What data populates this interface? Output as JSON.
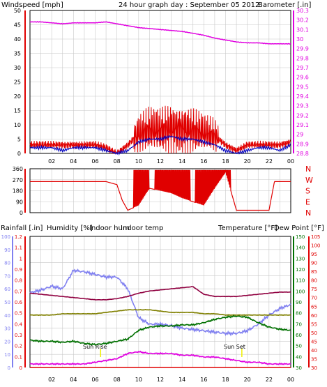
{
  "header": {
    "title": "24 hour graph day : September 05 2012",
    "wind_label": "Windspeed [mph]",
    "baro_label": "Barometer [.in]"
  },
  "x_ticks": [
    "02",
    "04",
    "06",
    "08",
    "10",
    "12",
    "14",
    "16",
    "18",
    "20",
    "22",
    "00"
  ],
  "direction_letters": [
    "N",
    "W",
    "S",
    "E",
    "N"
  ],
  "sunrise_label": "Sun Rise",
  "sunset_label": "Sun Set",
  "bottom_labels": {
    "rainfall": "Rainfall [.in]",
    "humidity": "Humidity [%]",
    "indoor_hum": "Indoor hum",
    "indoor_temp": "Indoor temp",
    "temperature": "Temperature [°F]",
    "dew_point": "Dew Point [°F]"
  },
  "colors": {
    "wind": "#e00000",
    "wind_avg": "#0000c0",
    "baro": "#e000e0",
    "grid": "#c8c8c8",
    "humidity": "#8080f0",
    "indoor_hum": "#808000",
    "indoor_temp": "#900040",
    "temperature": "#007000",
    "dew_point": "#e000e0",
    "rain": "#e00000",
    "sun": "#f0f000"
  },
  "chart_data": [
    {
      "type": "line",
      "name": "wind-baro",
      "x_hours": [
        0,
        1,
        2,
        3,
        4,
        5,
        6,
        7,
        8,
        9,
        10,
        11,
        12,
        13,
        14,
        15,
        16,
        17,
        18,
        19,
        20,
        21,
        22,
        23,
        24
      ],
      "left_axis": {
        "label": "Windspeed [mph]",
        "ylim": [
          0,
          50
        ],
        "ticks": [
          0,
          5,
          10,
          15,
          20,
          25,
          30,
          35,
          40,
          45,
          50
        ]
      },
      "right_axis": {
        "label": "Barometer [.in]",
        "ylim": [
          28.8,
          30.3
        ],
        "ticks": [
          "28.8",
          "28.9",
          "29",
          "29.1",
          "29.2",
          "29.3",
          "29.4",
          "29.5",
          "29.6",
          "29.7",
          "29.8",
          "29.9",
          "30",
          "30.1",
          "30.2",
          "30.3"
        ]
      },
      "series": [
        {
          "name": "Windspeed",
          "values": [
            3,
            3,
            3,
            3,
            3,
            3,
            3,
            2,
            0,
            3,
            7,
            8,
            8,
            9,
            9,
            8,
            7,
            6,
            3,
            1,
            3,
            3,
            3,
            3,
            4
          ]
        },
        {
          "name": "Wind avg",
          "values": [
            2,
            2,
            2,
            1,
            2,
            2,
            2,
            1,
            0,
            1,
            4,
            5,
            5,
            6,
            5,
            5,
            4,
            3,
            1,
            0,
            1,
            2,
            2,
            1,
            3
          ]
        },
        {
          "name": "Barometer",
          "values": [
            30.18,
            30.18,
            30.17,
            30.16,
            30.17,
            30.17,
            30.17,
            30.18,
            30.16,
            30.14,
            30.12,
            30.11,
            30.1,
            30.09,
            30.08,
            30.06,
            30.04,
            30.01,
            29.99,
            29.97,
            29.96,
            29.96,
            29.95,
            29.95,
            29.95
          ]
        }
      ]
    },
    {
      "type": "line",
      "name": "wind-direction",
      "ylim": [
        0,
        360
      ],
      "ticks": [
        0,
        90,
        180,
        270,
        360
      ],
      "x_hours": [
        0,
        1,
        2,
        3,
        4,
        5,
        6,
        7,
        8,
        8.5,
        9,
        10,
        11,
        12,
        13,
        14,
        15,
        16,
        17,
        18,
        19,
        20,
        21,
        22,
        22.5,
        23,
        24
      ],
      "values": [
        255,
        255,
        255,
        255,
        255,
        255,
        255,
        255,
        230,
        100,
        20,
        60,
        200,
        180,
        160,
        120,
        90,
        60,
        200,
        330,
        20,
        20,
        20,
        20,
        255,
        255,
        255
      ]
    },
    {
      "type": "line",
      "name": "rain-humidity-temp",
      "x_hours": [
        0,
        1,
        2,
        3,
        4,
        5,
        6,
        7,
        8,
        9,
        10,
        11,
        12,
        13,
        14,
        15,
        16,
        17,
        18,
        19,
        20,
        21,
        22,
        23,
        24
      ],
      "rain_axis": {
        "label": "Rainfall [.in]",
        "ylim": [
          0,
          1.2
        ],
        "ticks": [
          "0",
          "0.1",
          "0.2",
          "0.3",
          "0.4",
          "0.5",
          "0.6",
          "0.7",
          "0.8",
          "0.9",
          "1",
          "1.1",
          "1.2"
        ]
      },
      "humidity_axis": {
        "label": "Humidity [%]",
        "ylim": [
          0,
          100
        ],
        "ticks": [
          0,
          10,
          20,
          30,
          40,
          50,
          60,
          70,
          80,
          90,
          100
        ]
      },
      "temp_axis": {
        "label": "Temperature [°F]",
        "ylim": [
          30,
          150
        ],
        "ticks": [
          30,
          40,
          50,
          60,
          70,
          80,
          90,
          100,
          110,
          120,
          130,
          140,
          150
        ]
      },
      "dew_axis": {
        "label": "Dew Point [°F]",
        "ylim": [
          30,
          105
        ],
        "ticks": [
          30,
          35,
          40,
          45,
          50,
          55,
          60,
          65,
          70,
          75,
          80,
          85,
          90,
          95,
          100,
          105
        ]
      },
      "series": [
        {
          "name": "Humidity",
          "axis": "humidity",
          "values": [
            57,
            59,
            62,
            60,
            74,
            73,
            71,
            69,
            69,
            60,
            38,
            33,
            33,
            32,
            30,
            29,
            28,
            27,
            26,
            26,
            28,
            33,
            40,
            45,
            48
          ]
        },
        {
          "name": "Indoor hum",
          "axis": "humidity",
          "values": [
            40,
            40,
            40,
            41,
            41,
            41,
            41,
            42,
            43,
            44,
            44,
            44,
            43,
            42,
            42,
            42,
            41,
            41,
            40,
            40,
            40,
            40,
            40,
            40,
            40
          ]
        },
        {
          "name": "Indoor temp",
          "axis": "temp",
          "values": [
            98,
            97,
            96,
            95,
            94,
            93,
            92,
            92,
            93,
            95,
            98,
            100,
            101,
            102,
            103,
            104,
            97,
            95,
            95,
            95,
            96,
            97,
            98,
            99,
            99
          ]
        },
        {
          "name": "Temperature",
          "axis": "temp",
          "values": [
            55,
            54,
            54,
            53,
            54,
            52,
            51,
            52,
            54,
            56,
            64,
            67,
            68,
            68,
            69,
            69,
            71,
            74,
            76,
            77,
            76,
            71,
            67,
            65,
            64
          ]
        },
        {
          "name": "Dew Point",
          "axis": "dew",
          "values": [
            32,
            32,
            32,
            32,
            32,
            32,
            33,
            34,
            35,
            38,
            39,
            38,
            38,
            38,
            37,
            37,
            36,
            36,
            35,
            34,
            33,
            33,
            32,
            32,
            32
          ]
        },
        {
          "name": "Rainfall",
          "axis": "rain",
          "values": [
            0,
            0,
            0,
            0,
            0,
            0,
            0,
            0,
            0,
            0,
            0,
            0,
            0,
            0,
            0,
            0,
            0,
            0,
            0,
            0,
            0,
            0,
            0,
            0,
            0
          ]
        }
      ]
    }
  ]
}
